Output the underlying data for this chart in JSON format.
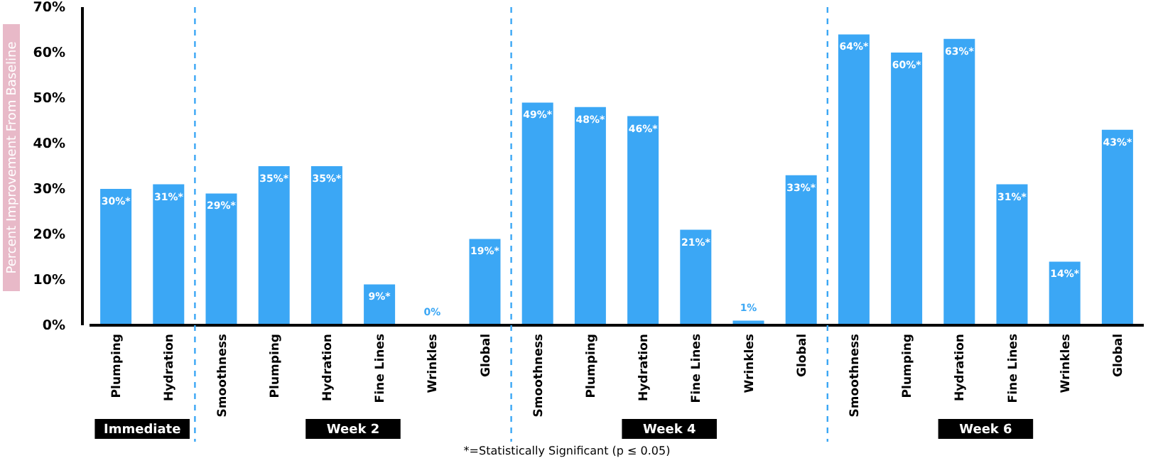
{
  "chart_data": {
    "type": "bar",
    "ylabel": "Percent Improvement From Baseline",
    "categories": [
      "Plumping",
      "Hydration",
      "Smoothness",
      "Plumping",
      "Hydration",
      "Fine Lines",
      "Wrinkles",
      "Global",
      "Smoothness",
      "Plumping",
      "Hydration",
      "Fine Lines",
      "Wrinkles",
      "Global",
      "Smoothness",
      "Plumping",
      "Hydration",
      "Fine Lines",
      "Wrinkles",
      "Global"
    ],
    "values": [
      30,
      31,
      29,
      35,
      35,
      9,
      0,
      19,
      49,
      48,
      46,
      21,
      1,
      33,
      64,
      60,
      63,
      31,
      14,
      43
    ],
    "value_labels": [
      "30%*",
      "31%*",
      "29%*",
      "35%*",
      "35%*",
      "9%*",
      "0%",
      "19%*",
      "49%*",
      "48%*",
      "46%*",
      "21%*",
      "1%",
      "33%*",
      "64%*",
      "60%*",
      "63%*",
      "31%*",
      "14%*",
      "43%*"
    ],
    "color": "#3ba7f5",
    "ylim": [
      0,
      70
    ],
    "yticks": [
      {
        "value": 0,
        "label": "0%"
      },
      {
        "value": 10,
        "label": "10%"
      },
      {
        "value": 20,
        "label": "20%"
      },
      {
        "value": 30,
        "label": "30%"
      },
      {
        "value": 40,
        "label": "40%"
      },
      {
        "value": 50,
        "label": "50%"
      },
      {
        "value": 60,
        "label": "60%"
      },
      {
        "value": 70,
        "label": "70%"
      }
    ],
    "annotations": [
      "Immediate",
      "Week 2",
      "Week 4",
      "Week 6",
      "*=Statistically Significant (p ≤ 0.05)"
    ],
    "grid": false
  }
}
